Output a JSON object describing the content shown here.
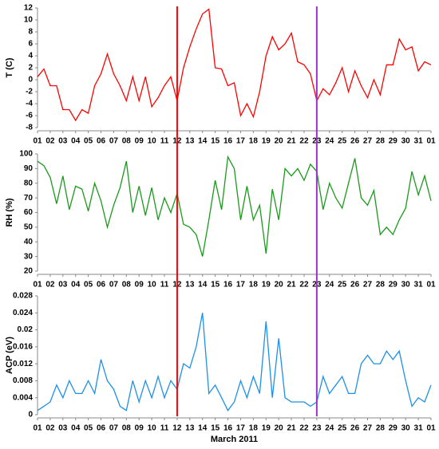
{
  "x_axis": {
    "xlim": [
      1,
      32
    ],
    "x": [
      1,
      1.5,
      2,
      2.5,
      3,
      3.5,
      4,
      4.5,
      5,
      5.5,
      6,
      6.5,
      7,
      7.5,
      8,
      8.5,
      9,
      9.5,
      10,
      10.5,
      11,
      11.5,
      12,
      12.5,
      13,
      13.5,
      14,
      14.5,
      15,
      15.5,
      16,
      16.5,
      17,
      17.5,
      18,
      18.5,
      19,
      19.5,
      20,
      20.5,
      21,
      21.5,
      22,
      22.5,
      23,
      23.5,
      24,
      24.5,
      25,
      25.5,
      26,
      26.5,
      27,
      27.5,
      28,
      28.5,
      29,
      29.5,
      30,
      30.5,
      31,
      31.5,
      32
    ],
    "xticks": [
      {
        "value": 1,
        "label": "01"
      },
      {
        "value": 2,
        "label": "02"
      },
      {
        "value": 3,
        "label": "03"
      },
      {
        "value": 4,
        "label": "04"
      },
      {
        "value": 5,
        "label": "05"
      },
      {
        "value": 6,
        "label": "06"
      },
      {
        "value": 7,
        "label": "07"
      },
      {
        "value": 8,
        "label": "08"
      },
      {
        "value": 9,
        "label": "09"
      },
      {
        "value": 10,
        "label": "10"
      },
      {
        "value": 11,
        "label": "11"
      },
      {
        "value": 12,
        "label": "12"
      },
      {
        "value": 13,
        "label": "13"
      },
      {
        "value": 14,
        "label": "14"
      },
      {
        "value": 15,
        "label": "15"
      },
      {
        "value": 16,
        "label": "16"
      },
      {
        "value": 17,
        "label": "17"
      },
      {
        "value": 18,
        "label": "18"
      },
      {
        "value": 19,
        "label": "19"
      },
      {
        "value": 20,
        "label": "20"
      },
      {
        "value": 21,
        "label": "21"
      },
      {
        "value": 22,
        "label": "22"
      },
      {
        "value": 23,
        "label": "23"
      },
      {
        "value": 24,
        "label": "24"
      },
      {
        "value": 25,
        "label": "25"
      },
      {
        "value": 26,
        "label": "26"
      },
      {
        "value": 27,
        "label": "27"
      },
      {
        "value": 28,
        "label": "28"
      },
      {
        "value": 29,
        "label": "29"
      },
      {
        "value": 30,
        "label": "30"
      },
      {
        "value": 31,
        "label": "31"
      },
      {
        "value": 32,
        "label": "01"
      }
    ]
  },
  "vlines": [
    {
      "x": 12,
      "color": "#ff0000"
    },
    {
      "x": 23,
      "color": "#9933cc"
    }
  ],
  "chart_data": [
    {
      "type": "line",
      "ylabel": "T (C)",
      "ylim": [
        -8,
        12
      ],
      "yticks": [
        -8,
        -6,
        -4,
        -2,
        0,
        2,
        4,
        6,
        8,
        10,
        12
      ],
      "series": [
        {
          "color": "#ff0000",
          "values": [
            0.5,
            1.8,
            -1,
            -1,
            -5,
            -5,
            -6.8,
            -5,
            -5.6,
            -1,
            1,
            4.3,
            1,
            -1,
            -3.5,
            0.5,
            -3.5,
            0.5,
            -4.5,
            -3,
            -1,
            0.5,
            -3.5,
            2,
            5.5,
            8.5,
            11,
            11.8,
            2,
            1.8,
            -1,
            -0.5,
            -6,
            -4,
            -6.2,
            -2,
            4,
            7.2,
            5,
            6,
            7.8,
            3,
            2.5,
            1,
            -3.5,
            -1.5,
            -2.5,
            -0.5,
            2,
            -2,
            1.5,
            -1,
            -3,
            0,
            -2.5,
            2.5,
            2.5,
            6.8,
            5,
            5.5,
            1.5,
            3,
            2.5
          ]
        }
      ]
    },
    {
      "type": "line",
      "ylabel": "RH (%)",
      "ylim": [
        20,
        100
      ],
      "yticks": [
        20,
        30,
        40,
        50,
        60,
        70,
        80,
        90,
        100
      ],
      "series": [
        {
          "color": "#1a9a1a",
          "values": [
            95,
            92,
            84,
            66,
            85,
            62,
            78,
            76,
            61,
            80,
            68,
            50,
            65,
            77,
            95,
            60,
            78,
            58,
            77,
            55,
            70,
            60,
            73,
            52,
            50,
            45,
            30,
            55,
            82,
            62,
            98,
            90,
            55,
            78,
            55,
            65,
            32,
            76,
            55,
            90,
            85,
            90,
            82,
            93,
            88,
            62,
            80,
            70,
            63,
            80,
            97,
            70,
            65,
            75,
            45,
            50,
            45,
            55,
            63,
            88,
            72,
            85,
            68
          ]
        }
      ]
    },
    {
      "type": "line",
      "ylabel": "ACP (eV)",
      "xlabel": "March 2011",
      "ylim": [
        0,
        0.028
      ],
      "yticks": [
        0,
        0.004,
        0.008,
        0.012,
        0.016,
        0.02,
        0.024,
        0.028
      ],
      "series": [
        {
          "color": "#1e90e8",
          "values": [
            0.001,
            0.002,
            0.003,
            0.007,
            0.004,
            0.008,
            0.005,
            0.005,
            0.008,
            0.005,
            0.013,
            0.008,
            0.006,
            0.002,
            0.001,
            0.008,
            0.003,
            0.008,
            0.004,
            0.009,
            0.004,
            0.008,
            0.006,
            0.012,
            0.011,
            0.016,
            0.024,
            0.005,
            0.007,
            0.004,
            0.001,
            0.003,
            0.008,
            0.004,
            0.009,
            0.005,
            0.022,
            0.004,
            0.018,
            0.004,
            0.003,
            0.003,
            0.003,
            0.002,
            0.003,
            0.009,
            0.005,
            0.007,
            0.009,
            0.005,
            0.005,
            0.012,
            0.014,
            0.012,
            0.012,
            0.015,
            0.013,
            0.015,
            0.008,
            0.002,
            0.004,
            0.003,
            0.007
          ]
        }
      ]
    }
  ]
}
